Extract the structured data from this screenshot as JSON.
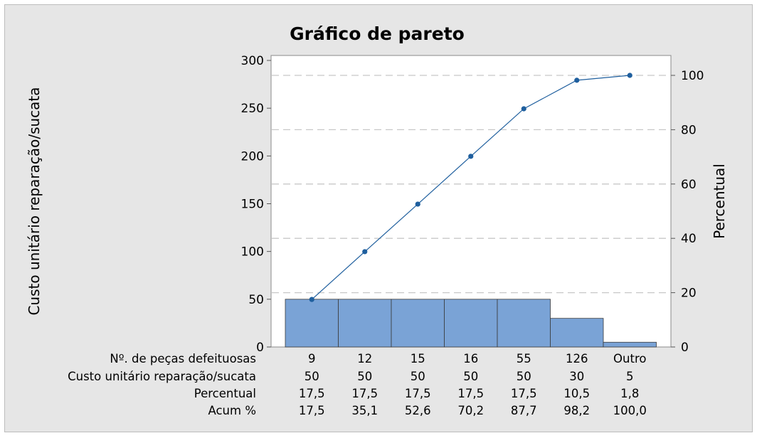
{
  "chart_data": {
    "type": "bar",
    "title": "Gráfico de pareto",
    "ylabel": "Custo unitário reparação/sucata",
    "y2label": "Percentual",
    "ylim": [
      0,
      300
    ],
    "y2lim": [
      0,
      100
    ],
    "yticks": [
      "0",
      "50",
      "100",
      "150",
      "200",
      "250",
      "300"
    ],
    "y2ticks": [
      "0",
      "20",
      "40",
      "60",
      "80",
      "100"
    ],
    "categories": [
      "9",
      "12",
      "15",
      "16",
      "55",
      "126",
      "Outro"
    ],
    "values": [
      50,
      50,
      50,
      50,
      50,
      30,
      5
    ],
    "cumulative_percent": [
      17.5,
      35.1,
      52.6,
      70.2,
      87.7,
      98.2,
      100.0
    ],
    "grid": "horizontal dashed at right-axis ticks",
    "colors": {
      "bar": "#7aa3d6",
      "line": "#1f5f9e",
      "grid": "#c8c8c8"
    },
    "table": {
      "rows": [
        {
          "label": "Nº. de peças defeituosas",
          "cells": [
            "9",
            "12",
            "15",
            "16",
            "55",
            "126",
            "Outro"
          ]
        },
        {
          "label": "Custo unitário reparação/sucata",
          "cells": [
            "50",
            "50",
            "50",
            "50",
            "50",
            "30",
            "5"
          ]
        },
        {
          "label": "Percentual",
          "cells": [
            "17,5",
            "17,5",
            "17,5",
            "17,5",
            "17,5",
            "10,5",
            "1,8"
          ]
        },
        {
          "label": "Acum %",
          "cells": [
            "17,5",
            "35,1",
            "52,6",
            "70,2",
            "87,7",
            "98,2",
            "100,0"
          ]
        }
      ]
    }
  }
}
